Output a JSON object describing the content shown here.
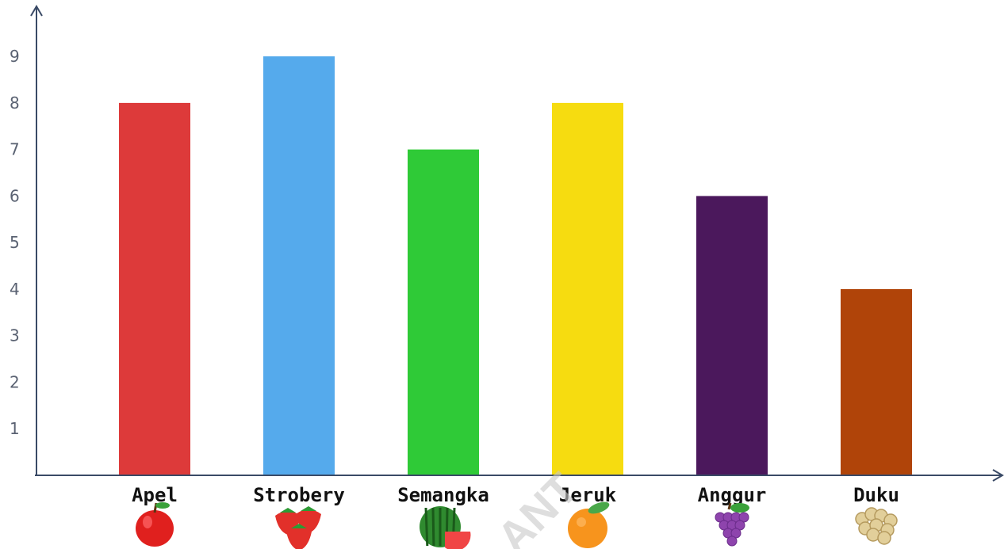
{
  "chart_data": {
    "type": "bar",
    "title": "",
    "xlabel": "",
    "ylabel": "",
    "categories": [
      "Apel",
      "Strobery",
      "Semangka",
      "Jeruk",
      "Anggur",
      "Duku"
    ],
    "values": [
      8,
      9,
      7,
      8,
      6,
      4
    ],
    "colors": [
      "#dd3a3a",
      "#55aaec",
      "#2fca37",
      "#f6dc10",
      "#4b185c",
      "#b04409"
    ],
    "yticks": [
      1,
      2,
      3,
      4,
      5,
      6,
      7,
      8,
      9
    ],
    "ylim": [
      0,
      9.7
    ],
    "grid": false,
    "icons": [
      "apple-icon",
      "strawberry-icon",
      "watermelon-icon",
      "orange-icon",
      "grape-icon",
      "duku-icon"
    ],
    "watermark": "ANT"
  }
}
